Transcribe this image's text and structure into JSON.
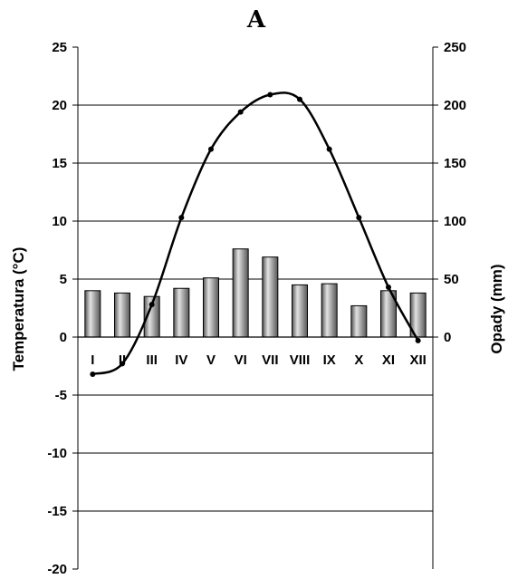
{
  "chart_data": {
    "type": "bar+line",
    "title": "A",
    "categories": [
      "I",
      "II",
      "III",
      "IV",
      "V",
      "VI",
      "VII",
      "VIII",
      "IX",
      "X",
      "XI",
      "XII"
    ],
    "y_left_label": "Temperatura (°C)",
    "y_right_label": "Opady (mm)",
    "y_left_range": [
      -20,
      25
    ],
    "y_right_range": [
      0,
      250
    ],
    "y_left_ticks": [
      "25",
      "20",
      "15",
      "10",
      "5",
      "0",
      "-5",
      "-10",
      "-15",
      "-20"
    ],
    "y_right_ticks": [
      "250",
      "200",
      "150",
      "100",
      "50",
      "0"
    ],
    "grid": true,
    "series": [
      {
        "type": "bar",
        "axis": "right",
        "values": [
          40,
          38,
          35,
          42,
          51,
          76,
          69,
          45,
          46,
          27,
          40,
          38
        ]
      },
      {
        "type": "line",
        "axis": "left",
        "values": [
          -3.2,
          -2.3,
          2.8,
          10.3,
          16.2,
          19.4,
          20.9,
          20.5,
          16.2,
          10.3,
          4.3,
          -0.3
        ]
      }
    ],
    "colors": {
      "bar_light": "#e2e2e2",
      "bar_dark": "#555555",
      "line": "#000000"
    }
  }
}
